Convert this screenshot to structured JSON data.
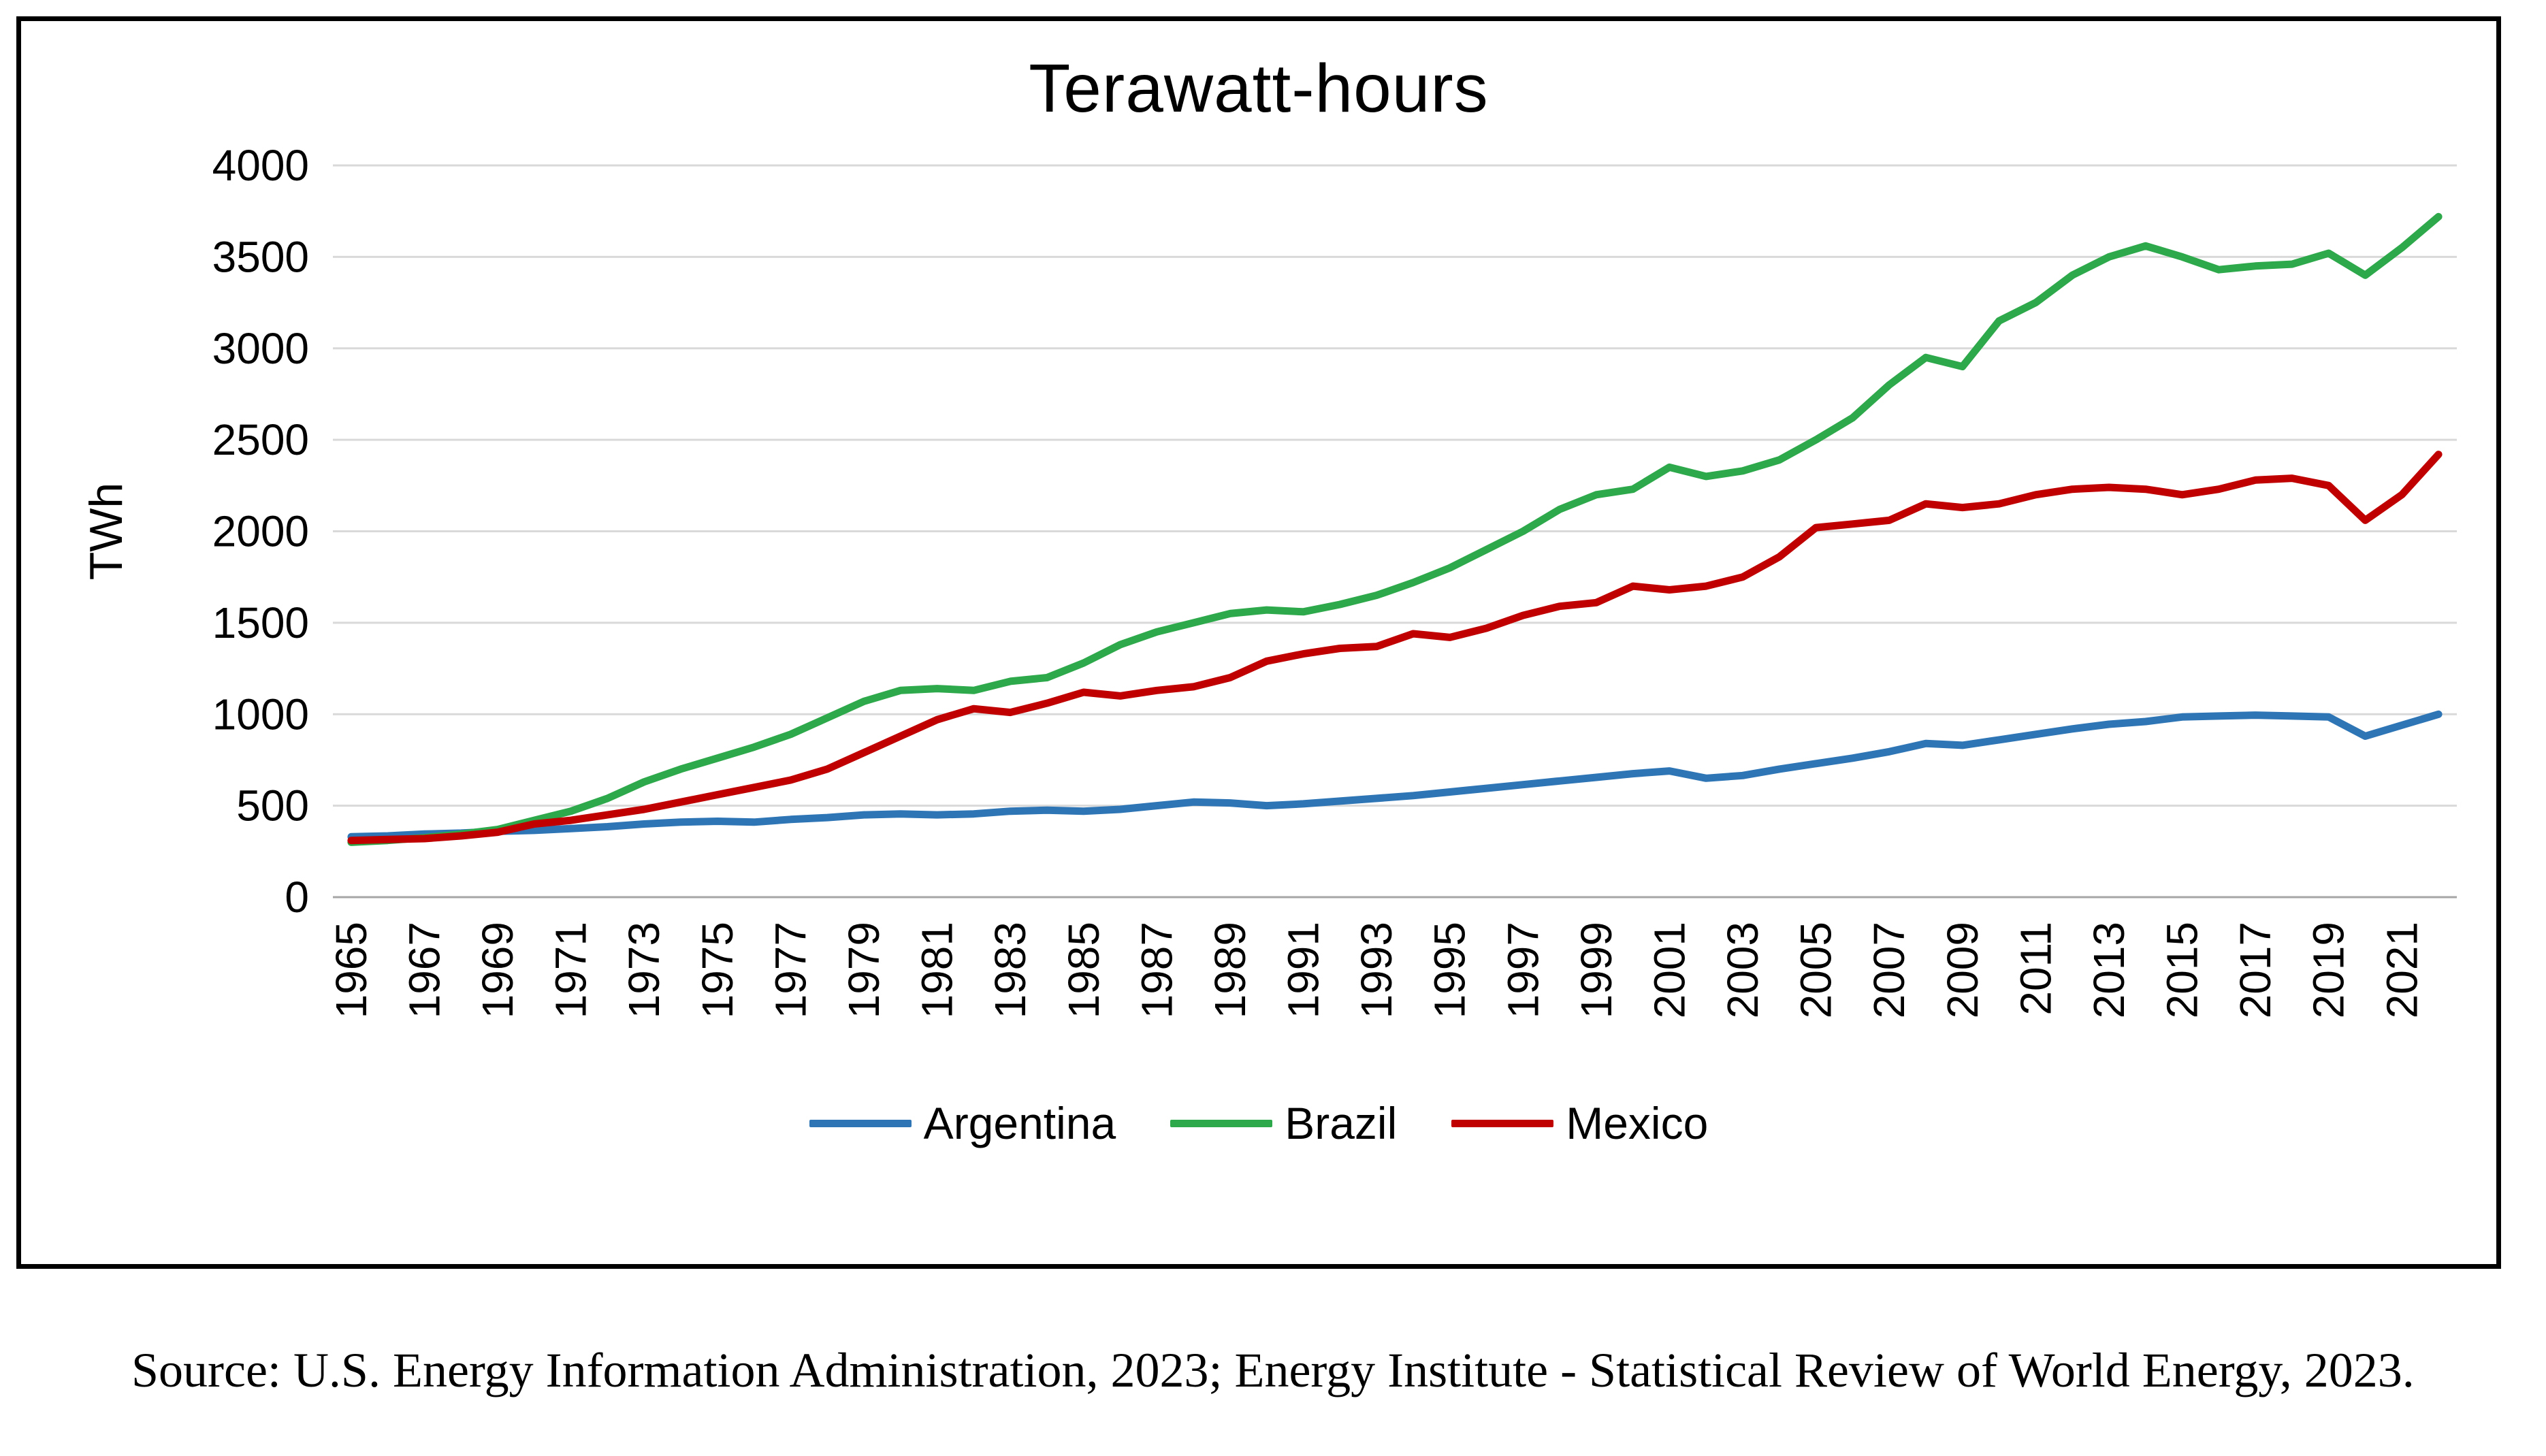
{
  "chart_data": {
    "type": "line",
    "title": "Terawatt-hours",
    "xlabel": "",
    "ylabel": "TWh",
    "ylim": [
      0,
      4000
    ],
    "ytick_step": 500,
    "grid": true,
    "legend_position": "bottom",
    "x": [
      1965,
      1966,
      1967,
      1968,
      1969,
      1970,
      1971,
      1972,
      1973,
      1974,
      1975,
      1976,
      1977,
      1978,
      1979,
      1980,
      1981,
      1982,
      1983,
      1984,
      1985,
      1986,
      1987,
      1988,
      1989,
      1990,
      1991,
      1992,
      1993,
      1994,
      1995,
      1996,
      1997,
      1998,
      1999,
      2000,
      2001,
      2002,
      2003,
      2004,
      2005,
      2006,
      2007,
      2008,
      2009,
      2010,
      2011,
      2012,
      2013,
      2014,
      2015,
      2016,
      2017,
      2018,
      2019,
      2020,
      2021,
      2022
    ],
    "x_tick_labels": [
      "1965",
      "1967",
      "1969",
      "1971",
      "1973",
      "1975",
      "1977",
      "1979",
      "1981",
      "1983",
      "1985",
      "1987",
      "1989",
      "1991",
      "1993",
      "1995",
      "1997",
      "1999",
      "2001",
      "2003",
      "2005",
      "2007",
      "2009",
      "2011",
      "2013",
      "2015",
      "2017",
      "2019",
      "2021"
    ],
    "series": [
      {
        "name": "Argentina",
        "color": "#2E75B6",
        "values": [
          330,
          335,
          345,
          350,
          360,
          365,
          375,
          385,
          400,
          410,
          415,
          410,
          425,
          435,
          450,
          455,
          450,
          455,
          470,
          475,
          470,
          480,
          500,
          520,
          515,
          500,
          510,
          525,
          540,
          555,
          575,
          595,
          615,
          635,
          655,
          675,
          690,
          650,
          665,
          700,
          730,
          760,
          795,
          840,
          830,
          860,
          890,
          920,
          945,
          960,
          985,
          990,
          995,
          990,
          985,
          880,
          940,
          1000
        ]
      },
      {
        "name": "Brazil",
        "color": "#2DA84A",
        "values": [
          300,
          310,
          325,
          345,
          370,
          420,
          470,
          540,
          630,
          700,
          760,
          820,
          890,
          980,
          1070,
          1130,
          1140,
          1130,
          1180,
          1200,
          1280,
          1380,
          1450,
          1500,
          1550,
          1570,
          1560,
          1600,
          1650,
          1720,
          1800,
          1900,
          2000,
          2120,
          2200,
          2230,
          2350,
          2300,
          2330,
          2390,
          2500,
          2620,
          2800,
          2950,
          2900,
          3150,
          3250,
          3400,
          3500,
          3560,
          3500,
          3430,
          3450,
          3460,
          3520,
          3400,
          3550,
          3720
        ]
      },
      {
        "name": "Mexico",
        "color": "#C00000",
        "values": [
          310,
          315,
          320,
          335,
          355,
          400,
          420,
          450,
          480,
          520,
          560,
          600,
          640,
          700,
          790,
          880,
          970,
          1030,
          1010,
          1060,
          1120,
          1100,
          1130,
          1150,
          1200,
          1290,
          1330,
          1360,
          1370,
          1440,
          1420,
          1470,
          1540,
          1590,
          1610,
          1700,
          1680,
          1700,
          1750,
          1860,
          2020,
          2040,
          2060,
          2150,
          2130,
          2150,
          2200,
          2230,
          2240,
          2230,
          2200,
          2230,
          2280,
          2290,
          2250,
          2060,
          2200,
          2420
        ]
      }
    ],
    "colors": {
      "gridline": "#D9D9D9",
      "axis_line": "#A6A6A6",
      "text": "#000000"
    }
  },
  "footer": {
    "source_text": "Source: U.S. Energy Information Administration, 2023; Energy Institute - Statistical Review of World Energy, 2023."
  }
}
